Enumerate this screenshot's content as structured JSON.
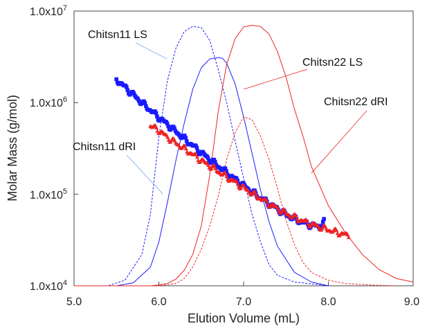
{
  "chart_data": {
    "type": "scatter",
    "xlabel": "Elution Volume (mL)",
    "ylabel": "Molar Mass (g/mol)",
    "xlim": [
      5.0,
      9.0
    ],
    "ylim": [
      10000,
      10000000
    ],
    "yscale": "log",
    "grid": false,
    "x_ticks": [
      "5.0",
      "6.0",
      "7.0",
      "8.0",
      "9.0"
    ],
    "y_ticks": [
      "1.0x10^4",
      "1.0x10^5",
      "1.0x10^6",
      "1.0x10^7"
    ],
    "colors": {
      "chitsn11": "#1a1aff",
      "chitsn22": "#ee2222",
      "leader": "#6aa8e8"
    },
    "annotations": [
      {
        "text": "Chitsn11 LS",
        "series": "chitsn11_ls",
        "leader_to": [
          6.1,
          3000000
        ]
      },
      {
        "text": "Chitsn22 LS",
        "series": "chitsn22_ls",
        "leader_to": [
          7.0,
          1400000
        ]
      },
      {
        "text": "Chitsn22 dRI",
        "series": "chitsn22_dri",
        "leader_to": [
          7.8,
          170000
        ]
      },
      {
        "text": "Chitsn11 dRI",
        "series": "chitsn11_dri",
        "leader_to": [
          6.05,
          100000
        ]
      }
    ],
    "series": [
      {
        "id": "chitsn11_mm",
        "kind": "points",
        "marker": "square",
        "color": "#1a1aff",
        "x": [
          5.5,
          5.6,
          5.7,
          5.8,
          5.9,
          6.0,
          6.1,
          6.2,
          6.3,
          6.4,
          6.5,
          6.6,
          6.7,
          6.8,
          6.9,
          7.0,
          7.1,
          7.2,
          7.3,
          7.4,
          7.5,
          7.6,
          7.7,
          7.8,
          7.9,
          7.95
        ],
        "y": [
          1800000,
          1480000,
          1220000,
          1000000,
          830000,
          690000,
          580000,
          485000,
          405000,
          340000,
          285000,
          240000,
          203000,
          172000,
          146000,
          124000,
          106000,
          91000,
          79000,
          69000,
          60000,
          54000,
          49000,
          46000,
          44000,
          50000
        ]
      },
      {
        "id": "chitsn22_mm",
        "kind": "points",
        "marker": "triangle",
        "color": "#ee2222",
        "x": [
          5.9,
          6.0,
          6.1,
          6.2,
          6.3,
          6.4,
          6.5,
          6.6,
          6.7,
          6.8,
          6.9,
          7.0,
          7.1,
          7.2,
          7.3,
          7.4,
          7.5,
          7.6,
          7.7,
          7.8,
          7.9,
          8.0,
          8.1,
          8.2,
          8.25
        ],
        "y": [
          560000,
          500000,
          420000,
          365000,
          315000,
          272000,
          235000,
          205000,
          178000,
          155000,
          135000,
          118000,
          103000,
          90000,
          79000,
          70000,
          62000,
          56000,
          51000,
          47000,
          44000,
          41000,
          38500,
          36000,
          35000
        ]
      },
      {
        "id": "chitsn11_ls",
        "kind": "line",
        "dash": true,
        "color": "#1a1aff",
        "x": [
          5.0,
          5.4,
          5.6,
          5.8,
          5.9,
          6.0,
          6.1,
          6.2,
          6.3,
          6.4,
          6.5,
          6.6,
          6.7,
          6.8,
          6.9,
          7.0,
          7.1,
          7.2,
          7.3,
          7.4,
          7.6,
          7.8,
          8.0
        ],
        "y": [
          10000,
          10000,
          11500,
          22000,
          60000,
          420000,
          1700000,
          3900000,
          6000000,
          6800000,
          6600000,
          4800000,
          2300000,
          1000000,
          380000,
          150000,
          60000,
          30000,
          17000,
          13000,
          11000,
          10500,
          10000
        ]
      },
      {
        "id": "chitsn11_dri",
        "kind": "line",
        "dash": false,
        "color": "#1a1aff",
        "x": [
          5.0,
          5.5,
          5.7,
          5.9,
          6.0,
          6.1,
          6.2,
          6.3,
          6.4,
          6.5,
          6.6,
          6.7,
          6.75,
          6.8,
          6.9,
          7.0,
          7.1,
          7.2,
          7.3,
          7.4,
          7.6,
          7.8,
          8.0
        ],
        "y": [
          10000,
          10000,
          10800,
          16000,
          30000,
          80000,
          230000,
          600000,
          1400000,
          2400000,
          3000000,
          3100000,
          3050000,
          2700000,
          1600000,
          700000,
          280000,
          110000,
          50000,
          27000,
          14000,
          11000,
          10000
        ]
      },
      {
        "id": "chitsn22_ls",
        "kind": "line",
        "dash": false,
        "color": "#ee2222",
        "x": [
          5.0,
          5.9,
          6.0,
          6.1,
          6.2,
          6.3,
          6.4,
          6.5,
          6.6,
          6.7,
          6.8,
          6.9,
          7.0,
          7.1,
          7.2,
          7.3,
          7.4,
          7.5,
          7.6,
          7.7,
          7.8,
          8.0,
          8.2,
          8.4,
          8.6,
          8.8,
          9.0
        ],
        "y": [
          10000,
          10000,
          10200,
          10600,
          11800,
          14800,
          22000,
          45000,
          160000,
          800000,
          2600000,
          5000000,
          6700000,
          7000000,
          6800000,
          5600000,
          3600000,
          1900000,
          850000,
          430000,
          200000,
          75000,
          38000,
          22000,
          15000,
          12000,
          11000
        ]
      },
      {
        "id": "chitsn22_dri",
        "kind": "line",
        "dash": true,
        "color": "#ee2222",
        "x": [
          5.0,
          6.0,
          6.2,
          6.3,
          6.4,
          6.5,
          6.6,
          6.7,
          6.8,
          6.9,
          7.0,
          7.1,
          7.2,
          7.3,
          7.4,
          7.5,
          7.6,
          7.7,
          7.8,
          8.0,
          8.2,
          8.5,
          8.8
        ],
        "y": [
          10000,
          10000,
          10600,
          12000,
          16000,
          25000,
          45000,
          95000,
          240000,
          470000,
          700000,
          650000,
          430000,
          240000,
          115000,
          52000,
          28000,
          18000,
          14000,
          11500,
          10600,
          10200,
          10000
        ]
      }
    ]
  }
}
